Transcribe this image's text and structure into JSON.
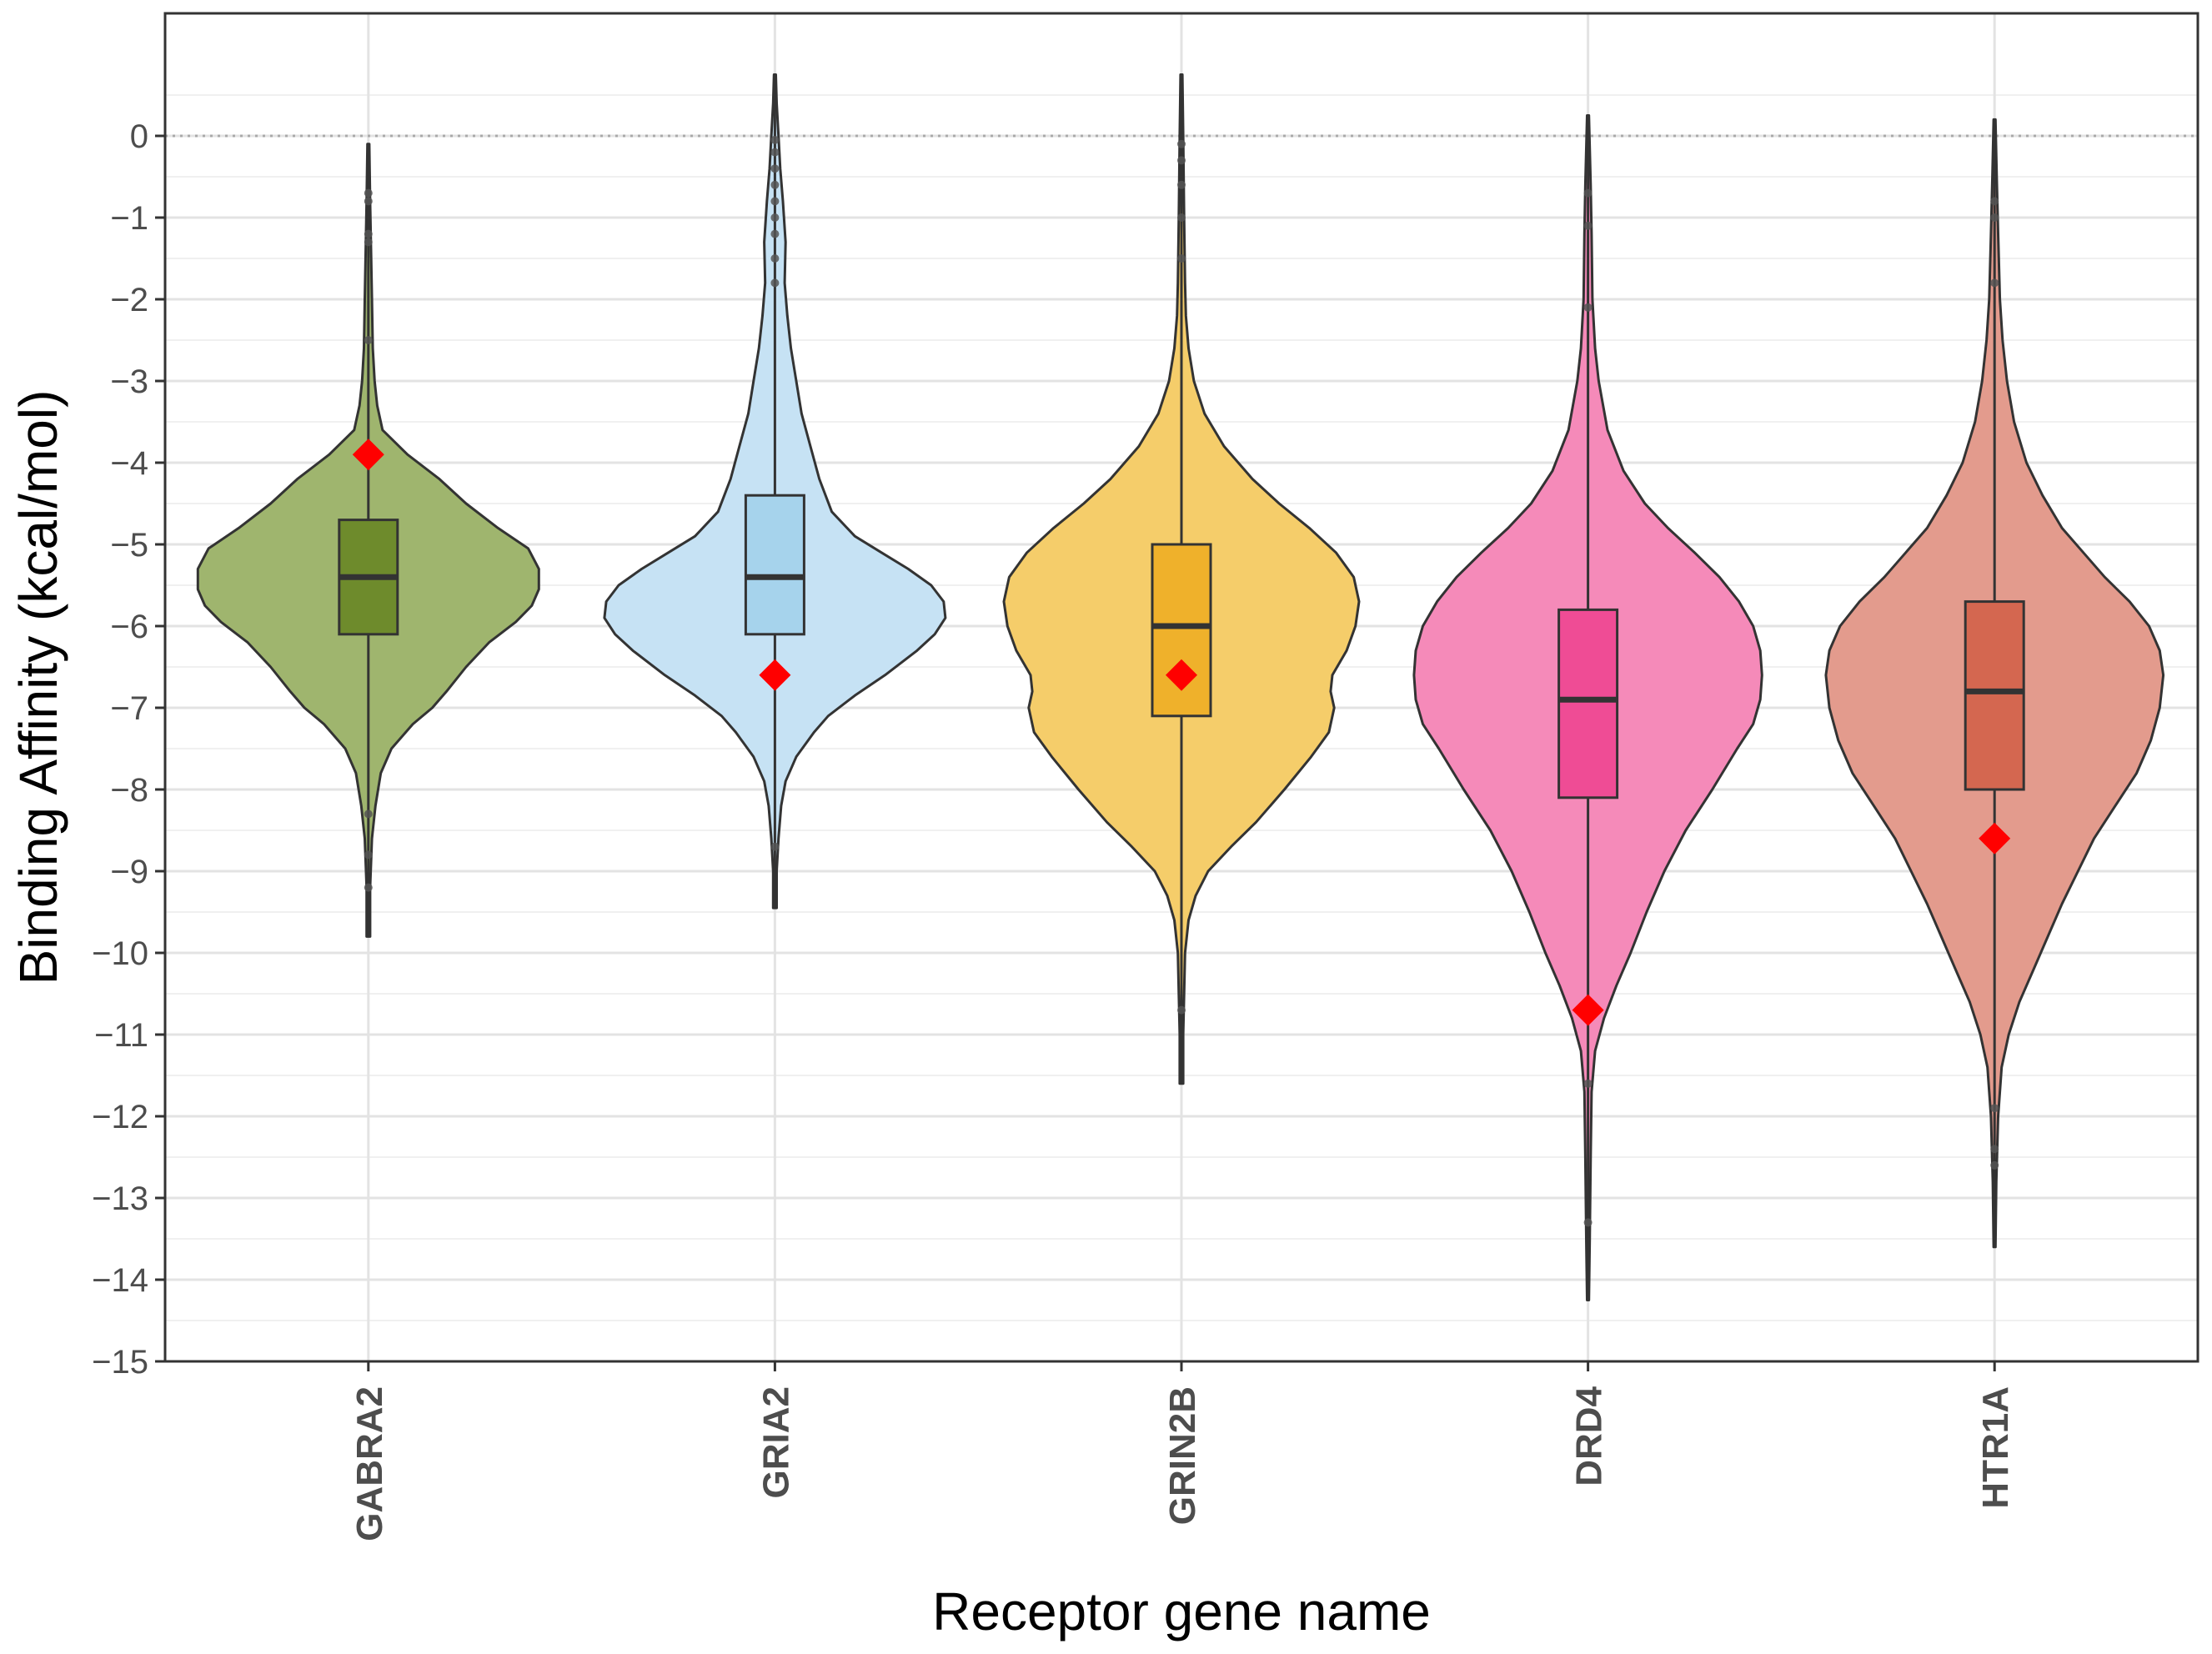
{
  "chart_data": {
    "type": "violin",
    "xlabel": "Receptor gene name",
    "ylabel": "Binding Affinity (kcal/mol)",
    "ylim": [
      -15,
      1.5
    ],
    "yticks": [
      0,
      -1,
      -2,
      -3,
      -4,
      -5,
      -6,
      -7,
      -8,
      -9,
      -10,
      -11,
      -12,
      -13,
      -14,
      -15
    ],
    "ytick_labels": [
      "0",
      "−1",
      "−2",
      "−3",
      "−4",
      "−5",
      "−6",
      "−7",
      "−8",
      "−9",
      "−10",
      "−11",
      "−12",
      "−13",
      "−14",
      "−15"
    ],
    "reference_line": {
      "y": 0,
      "style": "dotted"
    },
    "grid": true,
    "marker": {
      "shape": "diamond",
      "color": "#ff0000"
    },
    "categories": [
      "GABRA2",
      "GRIA2",
      "GRIN2B",
      "DRD4",
      "HTR1A"
    ],
    "series": [
      {
        "category": "GABRA2",
        "violin_color": "#9fb56e",
        "box_color": "#6e8b2c",
        "box": {
          "whisker_low": -8.0,
          "q1": -6.1,
          "median": -5.4,
          "q3": -4.7,
          "whisker_high": -2.6
        },
        "marked_value": -3.9,
        "outliers": [
          -8.3,
          -8.8,
          -9.2,
          -2.5,
          -1.3,
          -1.2,
          -0.8,
          -0.7
        ],
        "range": [
          -9.8,
          -0.1
        ],
        "density": [
          [
            -9.8,
            0.01
          ],
          [
            -9.2,
            0.01
          ],
          [
            -8.6,
            0.02
          ],
          [
            -8.2,
            0.04
          ],
          [
            -7.8,
            0.07
          ],
          [
            -7.5,
            0.13
          ],
          [
            -7.2,
            0.25
          ],
          [
            -7.0,
            0.36
          ],
          [
            -6.8,
            0.44
          ],
          [
            -6.5,
            0.55
          ],
          [
            -6.2,
            0.68
          ],
          [
            -5.95,
            0.83
          ],
          [
            -5.75,
            0.92
          ],
          [
            -5.55,
            0.96
          ],
          [
            -5.3,
            0.96
          ],
          [
            -5.05,
            0.9
          ],
          [
            -4.8,
            0.73
          ],
          [
            -4.5,
            0.55
          ],
          [
            -4.2,
            0.4
          ],
          [
            -3.9,
            0.22
          ],
          [
            -3.6,
            0.08
          ],
          [
            -3.3,
            0.05
          ],
          [
            -3.0,
            0.035
          ],
          [
            -2.6,
            0.025
          ],
          [
            -2.0,
            0.02
          ],
          [
            -1.4,
            0.015
          ],
          [
            -0.8,
            0.01
          ],
          [
            -0.1,
            0.005
          ]
        ]
      },
      {
        "category": "GRIA2",
        "violin_color": "#c6e2f4",
        "box_color": "#a6d3ec",
        "box": {
          "whisker_low": -8.2,
          "q1": -6.1,
          "median": -5.4,
          "q3": -4.4,
          "whisker_high": -1.9
        },
        "marked_value": -6.6,
        "outliers": [
          -8.7,
          -1.8,
          -1.5,
          -1.2,
          -1.0,
          -0.8,
          -0.6,
          -0.4,
          -0.2,
          -0.05
        ],
        "range": [
          -9.45,
          0.75
        ],
        "density": [
          [
            -9.45,
            0.01
          ],
          [
            -9.0,
            0.01
          ],
          [
            -8.6,
            0.02
          ],
          [
            -8.2,
            0.035
          ],
          [
            -7.9,
            0.06
          ],
          [
            -7.6,
            0.12
          ],
          [
            -7.3,
            0.22
          ],
          [
            -7.1,
            0.3
          ],
          [
            -6.85,
            0.45
          ],
          [
            -6.6,
            0.62
          ],
          [
            -6.3,
            0.8
          ],
          [
            -6.1,
            0.9
          ],
          [
            -5.9,
            0.96
          ],
          [
            -5.7,
            0.95
          ],
          [
            -5.5,
            0.88
          ],
          [
            -5.3,
            0.75
          ],
          [
            -5.1,
            0.6
          ],
          [
            -4.9,
            0.45
          ],
          [
            -4.6,
            0.32
          ],
          [
            -4.2,
            0.25
          ],
          [
            -3.8,
            0.2
          ],
          [
            -3.4,
            0.15
          ],
          [
            -3.0,
            0.12
          ],
          [
            -2.6,
            0.09
          ],
          [
            -2.2,
            0.07
          ],
          [
            -1.8,
            0.055
          ],
          [
            -1.3,
            0.06
          ],
          [
            -0.8,
            0.045
          ],
          [
            -0.4,
            0.03
          ],
          [
            0.0,
            0.02
          ],
          [
            0.4,
            0.01
          ],
          [
            0.75,
            0.005
          ]
        ]
      },
      {
        "category": "GRIN2B",
        "violin_color": "#f5cd6a",
        "box_color": "#efb12b",
        "box": {
          "whisker_low": -10.0,
          "q1": -7.1,
          "median": -6.0,
          "q3": -5.0,
          "whisker_high": -1.6
        },
        "marked_value": -6.6,
        "outliers": [
          -10.7,
          -1.5,
          -1.0,
          -0.6,
          -0.3,
          -0.1
        ],
        "range": [
          -11.6,
          0.75
        ],
        "density": [
          [
            -11.6,
            0.01
          ],
          [
            -11.0,
            0.01
          ],
          [
            -10.5,
            0.015
          ],
          [
            -10.0,
            0.02
          ],
          [
            -9.6,
            0.04
          ],
          [
            -9.3,
            0.08
          ],
          [
            -9.0,
            0.15
          ],
          [
            -8.7,
            0.28
          ],
          [
            -8.4,
            0.42
          ],
          [
            -8.0,
            0.58
          ],
          [
            -7.6,
            0.73
          ],
          [
            -7.3,
            0.83
          ],
          [
            -7.0,
            0.86
          ],
          [
            -6.8,
            0.84
          ],
          [
            -6.6,
            0.85
          ],
          [
            -6.3,
            0.93
          ],
          [
            -6.0,
            0.98
          ],
          [
            -5.7,
            1.0
          ],
          [
            -5.4,
            0.97
          ],
          [
            -5.1,
            0.87
          ],
          [
            -4.8,
            0.72
          ],
          [
            -4.5,
            0.55
          ],
          [
            -4.2,
            0.4
          ],
          [
            -3.8,
            0.24
          ],
          [
            -3.4,
            0.13
          ],
          [
            -3.0,
            0.07
          ],
          [
            -2.6,
            0.04
          ],
          [
            -2.2,
            0.025
          ],
          [
            -1.8,
            0.02
          ],
          [
            -1.0,
            0.015
          ],
          [
            0.0,
            0.01
          ],
          [
            0.75,
            0.005
          ]
        ]
      },
      {
        "category": "DRD4",
        "violin_color": "#f58ab9",
        "box_color": "#ef4c95",
        "box": {
          "whisker_low": -11.2,
          "q1": -8.1,
          "median": -6.9,
          "q3": -5.8,
          "whisker_high": -2.6
        },
        "marked_value": -10.7,
        "outliers": [
          -11.6,
          -13.3,
          -2.1,
          -1.1,
          -0.7
        ],
        "range": [
          -14.25,
          0.25
        ],
        "density": [
          [
            -14.25,
            0.005
          ],
          [
            -13.5,
            0.01
          ],
          [
            -12.5,
            0.015
          ],
          [
            -11.7,
            0.02
          ],
          [
            -11.2,
            0.04
          ],
          [
            -10.8,
            0.09
          ],
          [
            -10.4,
            0.16
          ],
          [
            -10.0,
            0.24
          ],
          [
            -9.5,
            0.33
          ],
          [
            -9.0,
            0.43
          ],
          [
            -8.5,
            0.55
          ],
          [
            -8.0,
            0.7
          ],
          [
            -7.5,
            0.84
          ],
          [
            -7.2,
            0.93
          ],
          [
            -6.9,
            0.97
          ],
          [
            -6.6,
            0.98
          ],
          [
            -6.3,
            0.97
          ],
          [
            -6.0,
            0.93
          ],
          [
            -5.7,
            0.85
          ],
          [
            -5.4,
            0.74
          ],
          [
            -5.1,
            0.6
          ],
          [
            -4.8,
            0.45
          ],
          [
            -4.5,
            0.32
          ],
          [
            -4.1,
            0.2
          ],
          [
            -3.6,
            0.11
          ],
          [
            -3.0,
            0.06
          ],
          [
            -2.6,
            0.04
          ],
          [
            -2.0,
            0.025
          ],
          [
            -1.2,
            0.02
          ],
          [
            -0.6,
            0.015
          ],
          [
            0.25,
            0.005
          ]
        ]
      },
      {
        "category": "HTR1A",
        "violin_color": "#e39b8d",
        "box_color": "#d46750",
        "box": {
          "whisker_low": -11.3,
          "q1": -8.0,
          "median": -6.8,
          "q3": -5.7,
          "whisker_high": -2.3
        },
        "marked_value": -8.6,
        "outliers": [
          -11.9,
          -12.4,
          -12.6,
          -1.8,
          -1.0,
          -0.8
        ],
        "range": [
          -13.6,
          0.2
        ],
        "density": [
          [
            -13.6,
            0.005
          ],
          [
            -12.8,
            0.01
          ],
          [
            -12.0,
            0.02
          ],
          [
            -11.4,
            0.04
          ],
          [
            -11.0,
            0.08
          ],
          [
            -10.6,
            0.14
          ],
          [
            -10.2,
            0.22
          ],
          [
            -9.8,
            0.3
          ],
          [
            -9.4,
            0.38
          ],
          [
            -9.0,
            0.47
          ],
          [
            -8.6,
            0.56
          ],
          [
            -8.2,
            0.68
          ],
          [
            -7.8,
            0.8
          ],
          [
            -7.4,
            0.88
          ],
          [
            -7.0,
            0.93
          ],
          [
            -6.6,
            0.95
          ],
          [
            -6.3,
            0.93
          ],
          [
            -6.0,
            0.87
          ],
          [
            -5.7,
            0.76
          ],
          [
            -5.4,
            0.62
          ],
          [
            -5.1,
            0.5
          ],
          [
            -4.8,
            0.38
          ],
          [
            -4.4,
            0.27
          ],
          [
            -4.0,
            0.18
          ],
          [
            -3.5,
            0.11
          ],
          [
            -3.0,
            0.07
          ],
          [
            -2.5,
            0.045
          ],
          [
            -2.0,
            0.03
          ],
          [
            -1.2,
            0.02
          ],
          [
            -0.5,
            0.012
          ],
          [
            0.2,
            0.005
          ]
        ]
      }
    ]
  }
}
